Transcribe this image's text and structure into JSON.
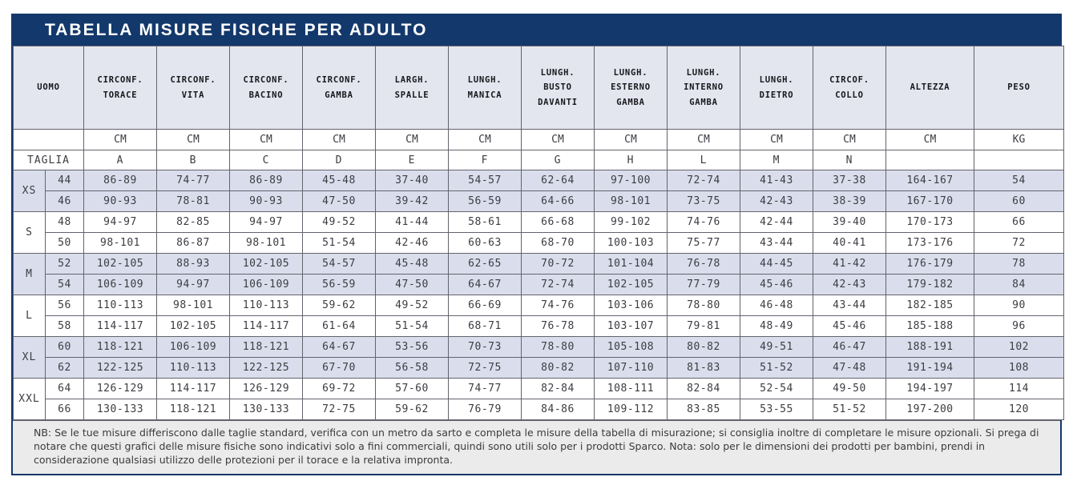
{
  "title": "TABELLA MISURE FISICHE PER ADULTO",
  "colors": {
    "navy": "#13386b",
    "header_bg": "#e3e5ef",
    "stripe_bg": "#dadeec",
    "footer_bg": "#ebebeb",
    "border": "#63636d"
  },
  "table": {
    "corner_header": "UOMO",
    "taglia_label": "TAGLIA",
    "columns": [
      {
        "label": "CIRCONF. TORACE",
        "unit": "CM",
        "letter": "A"
      },
      {
        "label": "CIRCONF. VITA",
        "unit": "CM",
        "letter": "B"
      },
      {
        "label": "CIRCONF. BACINO",
        "unit": "CM",
        "letter": "C"
      },
      {
        "label": "CIRCONF. GAMBA",
        "unit": "CM",
        "letter": "D"
      },
      {
        "label": "LARGH. SPALLE",
        "unit": "CM",
        "letter": "E"
      },
      {
        "label": "LUNGH. MANICA",
        "unit": "CM",
        "letter": "F"
      },
      {
        "label": "LUNGH. BUSTO DAVANTI",
        "unit": "CM",
        "letter": "G"
      },
      {
        "label": "LUNGH. ESTERNO GAMBA",
        "unit": "CM",
        "letter": "H"
      },
      {
        "label": "LUNGH. INTERNO GAMBA",
        "unit": "CM",
        "letter": "L"
      },
      {
        "label": "LUNGH. DIETRO",
        "unit": "CM",
        "letter": "M"
      },
      {
        "label": "CIRCOF. COLLO",
        "unit": "CM",
        "letter": "N"
      },
      {
        "label": "ALTEZZA",
        "unit": "CM",
        "letter": ""
      },
      {
        "label": "PESO",
        "unit": "KG",
        "letter": ""
      }
    ],
    "groups": [
      {
        "size": "XS",
        "shaded": true,
        "rows": [
          {
            "num": "44",
            "values": [
              "86-89",
              "74-77",
              "86-89",
              "45-48",
              "37-40",
              "54-57",
              "62-64",
              "97-100",
              "72-74",
              "41-43",
              "37-38",
              "164-167",
              "54"
            ]
          },
          {
            "num": "46",
            "values": [
              "90-93",
              "78-81",
              "90-93",
              "47-50",
              "39-42",
              "56-59",
              "64-66",
              "98-101",
              "73-75",
              "42-43",
              "38-39",
              "167-170",
              "60"
            ]
          }
        ]
      },
      {
        "size": "S",
        "shaded": false,
        "rows": [
          {
            "num": "48",
            "values": [
              "94-97",
              "82-85",
              "94-97",
              "49-52",
              "41-44",
              "58-61",
              "66-68",
              "99-102",
              "74-76",
              "42-44",
              "39-40",
              "170-173",
              "66"
            ]
          },
          {
            "num": "50",
            "values": [
              "98-101",
              "86-87",
              "98-101",
              "51-54",
              "42-46",
              "60-63",
              "68-70",
              "100-103",
              "75-77",
              "43-44",
              "40-41",
              "173-176",
              "72"
            ]
          }
        ]
      },
      {
        "size": "M",
        "shaded": true,
        "rows": [
          {
            "num": "52",
            "values": [
              "102-105",
              "88-93",
              "102-105",
              "54-57",
              "45-48",
              "62-65",
              "70-72",
              "101-104",
              "76-78",
              "44-45",
              "41-42",
              "176-179",
              "78"
            ]
          },
          {
            "num": "54",
            "values": [
              "106-109",
              "94-97",
              "106-109",
              "56-59",
              "47-50",
              "64-67",
              "72-74",
              "102-105",
              "77-79",
              "45-46",
              "42-43",
              "179-182",
              "84"
            ]
          }
        ]
      },
      {
        "size": "L",
        "shaded": false,
        "rows": [
          {
            "num": "56",
            "values": [
              "110-113",
              "98-101",
              "110-113",
              "59-62",
              "49-52",
              "66-69",
              "74-76",
              "103-106",
              "78-80",
              "46-48",
              "43-44",
              "182-185",
              "90"
            ]
          },
          {
            "num": "58",
            "values": [
              "114-117",
              "102-105",
              "114-117",
              "61-64",
              "51-54",
              "68-71",
              "76-78",
              "103-107",
              "79-81",
              "48-49",
              "45-46",
              "185-188",
              "96"
            ]
          }
        ]
      },
      {
        "size": "XL",
        "shaded": true,
        "rows": [
          {
            "num": "60",
            "values": [
              "118-121",
              "106-109",
              "118-121",
              "64-67",
              "53-56",
              "70-73",
              "78-80",
              "105-108",
              "80-82",
              "49-51",
              "46-47",
              "188-191",
              "102"
            ]
          },
          {
            "num": "62",
            "values": [
              "122-125",
              "110-113",
              "122-125",
              "67-70",
              "56-58",
              "72-75",
              "80-82",
              "107-110",
              "81-83",
              "51-52",
              "47-48",
              "191-194",
              "108"
            ]
          }
        ]
      },
      {
        "size": "XXL",
        "shaded": false,
        "rows": [
          {
            "num": "64",
            "values": [
              "126-129",
              "114-117",
              "126-129",
              "69-72",
              "57-60",
              "74-77",
              "82-84",
              "108-111",
              "82-84",
              "52-54",
              "49-50",
              "194-197",
              "114"
            ]
          },
          {
            "num": "66",
            "values": [
              "130-133",
              "118-121",
              "130-133",
              "72-75",
              "59-62",
              "76-79",
              "84-86",
              "109-112",
              "83-85",
              "53-55",
              "51-52",
              "197-200",
              "120"
            ]
          }
        ]
      }
    ]
  },
  "note": "NB: Se le tue misure differiscono dalle taglie standard, verifica con un metro da sarto e completa le misure della tabella di misurazione; si consiglia inoltre di completare le misure opzionali. Si prega di notare che questi grafici delle misure fisiche sono indicativi solo a fini commerciali, quindi sono utili solo per i prodotti Sparco. Nota: solo per le dimensioni dei prodotti per bambini, prendi in considerazione qualsiasi utilizzo delle protezioni per il torace e la relativa impronta."
}
